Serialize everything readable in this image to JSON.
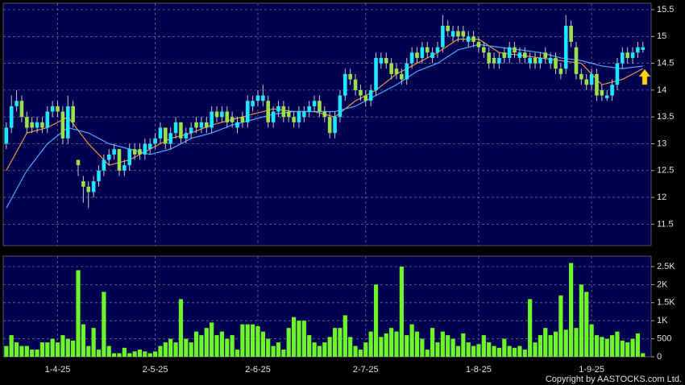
{
  "chart_data": {
    "type": "candlestick",
    "annotation": "Copyright by AASTOCKS.com Ltd.",
    "up_color": "#1fe6ff",
    "down_color": "#9be04a",
    "xlim": [
      -0.6,
      125.6
    ],
    "xticks": [
      {
        "value": 10,
        "label": "1-4-25"
      },
      {
        "value": 29,
        "label": "2-5-25"
      },
      {
        "value": 49,
        "label": "2-6-25"
      },
      {
        "value": 70,
        "label": "2-7-25"
      },
      {
        "value": 92,
        "label": "1-8-25"
      },
      {
        "value": 114,
        "label": "1-9-25"
      }
    ],
    "ylim": [
      11.1,
      15.62
    ],
    "yticks": [
      11.5,
      12,
      12.5,
      13,
      13.5,
      14,
      14.5,
      15,
      15.5
    ],
    "grid": true,
    "ohlc": [
      [
        13.0,
        13.4,
        12.9,
        13.3
      ],
      [
        13.3,
        13.9,
        13.2,
        13.7
      ],
      [
        13.7,
        14.0,
        13.6,
        13.8
      ],
      [
        13.8,
        13.9,
        13.4,
        13.5
      ],
      [
        13.5,
        13.6,
        13.2,
        13.3
      ],
      [
        13.4,
        13.5,
        13.2,
        13.3
      ],
      [
        13.3,
        13.5,
        13.2,
        13.4
      ],
      [
        13.4,
        13.5,
        13.2,
        13.3
      ],
      [
        13.3,
        13.7,
        13.2,
        13.6
      ],
      [
        13.6,
        13.8,
        13.5,
        13.7
      ],
      [
        13.7,
        13.8,
        13.5,
        13.6
      ],
      [
        13.6,
        13.7,
        13.0,
        13.1
      ],
      [
        13.1,
        13.9,
        13.0,
        13.7
      ],
      [
        13.7,
        13.8,
        13.3,
        13.4
      ],
      [
        12.7,
        12.7,
        12.4,
        12.6
      ],
      [
        12.3,
        12.4,
        11.9,
        12.2
      ],
      [
        12.2,
        12.3,
        11.8,
        12.1
      ],
      [
        12.1,
        12.4,
        12.0,
        12.3
      ],
      [
        12.3,
        12.6,
        12.2,
        12.5
      ],
      [
        12.5,
        12.8,
        12.4,
        12.7
      ],
      [
        12.7,
        12.9,
        12.6,
        12.8
      ],
      [
        12.8,
        13.0,
        12.7,
        12.9
      ],
      [
        12.9,
        12.9,
        12.4,
        12.5
      ],
      [
        12.5,
        12.7,
        12.4,
        12.6
      ],
      [
        12.6,
        13.0,
        12.5,
        12.9
      ],
      [
        12.9,
        13.0,
        12.7,
        12.8
      ],
      [
        12.9,
        13.0,
        12.7,
        12.8
      ],
      [
        12.8,
        13.1,
        12.7,
        13.0
      ],
      [
        12.9,
        13.1,
        12.8,
        13.0
      ],
      [
        13.0,
        13.2,
        12.9,
        13.1
      ],
      [
        13.1,
        13.4,
        13.0,
        13.3
      ],
      [
        13.3,
        13.3,
        12.9,
        13.0
      ],
      [
        13.0,
        13.3,
        12.9,
        13.2
      ],
      [
        13.2,
        13.5,
        13.1,
        13.4
      ],
      [
        13.4,
        13.4,
        13.0,
        13.1
      ],
      [
        13.1,
        13.3,
        13.0,
        13.2
      ],
      [
        13.2,
        13.4,
        13.1,
        13.3
      ],
      [
        13.4,
        13.5,
        13.2,
        13.3
      ],
      [
        13.3,
        13.5,
        13.2,
        13.4
      ],
      [
        13.4,
        13.5,
        13.2,
        13.3
      ],
      [
        13.3,
        13.7,
        13.2,
        13.6
      ],
      [
        13.6,
        13.7,
        13.4,
        13.5
      ],
      [
        13.5,
        13.7,
        13.4,
        13.6
      ],
      [
        13.6,
        13.7,
        13.3,
        13.4
      ],
      [
        13.5,
        13.6,
        13.3,
        13.4
      ],
      [
        13.3,
        13.5,
        13.2,
        13.4
      ],
      [
        13.5,
        13.6,
        13.3,
        13.4
      ],
      [
        13.4,
        13.9,
        13.3,
        13.8
      ],
      [
        13.7,
        13.9,
        13.6,
        13.8
      ],
      [
        13.8,
        14.0,
        13.7,
        13.9
      ],
      [
        13.8,
        14.1,
        13.7,
        13.9
      ],
      [
        13.8,
        13.9,
        13.3,
        13.4
      ],
      [
        13.4,
        13.7,
        13.3,
        13.6
      ],
      [
        13.6,
        13.8,
        13.5,
        13.7
      ],
      [
        13.7,
        13.8,
        13.4,
        13.5
      ],
      [
        13.6,
        13.7,
        13.4,
        13.5
      ],
      [
        13.5,
        13.6,
        13.3,
        13.4
      ],
      [
        13.4,
        13.7,
        13.3,
        13.6
      ],
      [
        13.5,
        13.7,
        13.4,
        13.6
      ],
      [
        13.6,
        13.8,
        13.5,
        13.7
      ],
      [
        13.7,
        13.9,
        13.6,
        13.8
      ],
      [
        13.8,
        13.9,
        13.5,
        13.6
      ],
      [
        13.6,
        13.7,
        13.4,
        13.5
      ],
      [
        13.5,
        13.6,
        13.1,
        13.2
      ],
      [
        13.2,
        13.6,
        13.1,
        13.5
      ],
      [
        13.5,
        14.0,
        13.4,
        13.9
      ],
      [
        13.9,
        14.4,
        13.8,
        14.3
      ],
      [
        14.3,
        14.4,
        14.1,
        14.2
      ],
      [
        14.2,
        14.3,
        13.9,
        14.0
      ],
      [
        14.0,
        14.1,
        13.8,
        13.9
      ],
      [
        13.9,
        14.0,
        13.7,
        13.8
      ],
      [
        13.8,
        14.1,
        13.7,
        14.0
      ],
      [
        14.0,
        14.7,
        13.9,
        14.6
      ],
      [
        14.5,
        14.7,
        14.4,
        14.6
      ],
      [
        14.6,
        14.7,
        14.4,
        14.5
      ],
      [
        14.5,
        14.6,
        14.2,
        14.3
      ],
      [
        14.4,
        14.5,
        14.2,
        14.3
      ],
      [
        14.3,
        14.4,
        14.1,
        14.2
      ],
      [
        14.2,
        14.6,
        14.1,
        14.5
      ],
      [
        14.5,
        14.8,
        14.4,
        14.7
      ],
      [
        14.7,
        14.8,
        14.5,
        14.6
      ],
      [
        14.6,
        14.9,
        14.5,
        14.8
      ],
      [
        14.8,
        14.9,
        14.6,
        14.7
      ],
      [
        14.6,
        14.8,
        14.5,
        14.7
      ],
      [
        14.7,
        14.9,
        14.6,
        14.8
      ],
      [
        14.8,
        15.4,
        14.7,
        15.2
      ],
      [
        15.2,
        15.3,
        15.0,
        15.1
      ],
      [
        15.0,
        15.2,
        14.9,
        15.1
      ],
      [
        15.1,
        15.2,
        14.9,
        15.0
      ],
      [
        15.1,
        15.2,
        14.9,
        15.0
      ],
      [
        14.9,
        15.1,
        14.8,
        15.0
      ],
      [
        15.0,
        15.1,
        14.8,
        14.9
      ],
      [
        14.9,
        15.0,
        14.7,
        14.8
      ],
      [
        14.8,
        14.9,
        14.6,
        14.7
      ],
      [
        14.7,
        14.8,
        14.4,
        14.5
      ],
      [
        14.6,
        14.7,
        14.4,
        14.5
      ],
      [
        14.5,
        14.7,
        14.4,
        14.6
      ],
      [
        14.7,
        14.8,
        14.5,
        14.6
      ],
      [
        14.6,
        14.9,
        14.5,
        14.8
      ],
      [
        14.8,
        14.9,
        14.6,
        14.7
      ],
      [
        14.6,
        14.8,
        14.5,
        14.7
      ],
      [
        14.7,
        14.8,
        14.5,
        14.6
      ],
      [
        14.5,
        14.7,
        14.4,
        14.6
      ],
      [
        14.6,
        14.7,
        14.4,
        14.5
      ],
      [
        14.5,
        14.7,
        14.4,
        14.6
      ],
      [
        14.7,
        14.8,
        14.5,
        14.6
      ],
      [
        14.5,
        14.7,
        14.4,
        14.6
      ],
      [
        14.6,
        14.7,
        14.3,
        14.4
      ],
      [
        14.4,
        14.5,
        14.2,
        14.3
      ],
      [
        14.4,
        15.4,
        14.3,
        15.2
      ],
      [
        15.2,
        15.3,
        14.8,
        14.9
      ],
      [
        14.8,
        14.9,
        14.2,
        14.3
      ],
      [
        14.3,
        14.4,
        14.1,
        14.2
      ],
      [
        14.2,
        14.3,
        14.0,
        14.1
      ],
      [
        14.1,
        14.4,
        14.0,
        14.3
      ],
      [
        14.3,
        14.4,
        13.8,
        13.9
      ],
      [
        14.0,
        14.1,
        13.8,
        13.9
      ],
      [
        13.85,
        14.0,
        13.8,
        13.9
      ],
      [
        13.9,
        14.2,
        13.8,
        14.1
      ],
      [
        14.1,
        14.6,
        14.0,
        14.5
      ],
      [
        14.5,
        14.8,
        14.4,
        14.7
      ],
      [
        14.7,
        14.8,
        14.5,
        14.6
      ],
      [
        14.6,
        14.8,
        14.5,
        14.7
      ],
      [
        14.7,
        14.9,
        14.6,
        14.8
      ],
      [
        14.75,
        14.9,
        14.7,
        14.8
      ]
    ],
    "series": [
      {
        "color": "#e8963c",
        "x": [
          0,
          4,
          8,
          12,
          16,
          20,
          24,
          28,
          32,
          36,
          40,
          44,
          48,
          52,
          56,
          60,
          64,
          68,
          72,
          76,
          80,
          84,
          88,
          92,
          96,
          100,
          104,
          108,
          112,
          116,
          120,
          124
        ],
        "values": [
          12.5,
          13.2,
          13.3,
          13.5,
          13.0,
          12.6,
          12.7,
          12.9,
          13.1,
          13.2,
          13.35,
          13.45,
          13.55,
          13.65,
          13.6,
          13.6,
          13.5,
          13.8,
          14.0,
          14.3,
          14.5,
          14.7,
          14.95,
          14.95,
          14.7,
          14.65,
          14.6,
          14.55,
          14.5,
          14.1,
          14.2,
          14.4
        ]
      },
      {
        "color": "#4aa8ff",
        "x": [
          0,
          4,
          8,
          12,
          16,
          20,
          24,
          28,
          32,
          36,
          40,
          44,
          48,
          52,
          56,
          60,
          64,
          68,
          72,
          76,
          80,
          84,
          88,
          92,
          96,
          100,
          104,
          108,
          112,
          116,
          120,
          124
        ],
        "values": [
          11.8,
          12.5,
          13.0,
          13.3,
          13.2,
          13.0,
          12.9,
          12.8,
          12.9,
          13.1,
          13.2,
          13.35,
          13.45,
          13.55,
          13.6,
          13.6,
          13.6,
          13.7,
          13.9,
          14.1,
          14.35,
          14.5,
          14.75,
          14.85,
          14.8,
          14.75,
          14.7,
          14.6,
          14.55,
          14.45,
          14.4,
          14.45
        ]
      }
    ],
    "volume": {
      "color": "#6ef52a",
      "ylim": [
        0,
        2790
      ],
      "yticks": [
        0,
        500,
        {
          "value": 1000,
          "label": "1K"
        },
        {
          "value": 1500,
          "label": "1.5K"
        },
        {
          "value": 2000,
          "label": "2K"
        },
        {
          "value": 2500,
          "label": "2.5K"
        }
      ],
      "values": [
        300,
        600,
        400,
        300,
        300,
        200,
        200,
        400,
        400,
        500,
        400,
        600,
        500,
        450,
        2400,
        900,
        300,
        800,
        200,
        1800,
        300,
        100,
        100,
        250,
        100,
        150,
        200,
        150,
        100,
        150,
        300,
        400,
        500,
        400,
        1600,
        500,
        400,
        700,
        600,
        800,
        950,
        600,
        700,
        500,
        600,
        200,
        900,
        900,
        900,
        850,
        700,
        500,
        300,
        400,
        200,
        800,
        1100,
        1000,
        1000,
        600,
        400,
        300,
        400,
        550,
        800,
        800,
        1150,
        550,
        300,
        200,
        400,
        700,
        2000,
        550,
        650,
        800,
        700,
        2500,
        600,
        900,
        700,
        500,
        200,
        800,
        400,
        700,
        600,
        500,
        300,
        650,
        400,
        300,
        350,
        600,
        400,
        300,
        250,
        500,
        300,
        250,
        300,
        200,
        1600,
        400,
        600,
        800,
        600,
        700,
        1700,
        750,
        2600,
        800,
        2000,
        1800,
        900,
        600,
        550,
        500,
        600,
        700,
        450,
        400,
        500,
        650,
        100
      ]
    }
  }
}
